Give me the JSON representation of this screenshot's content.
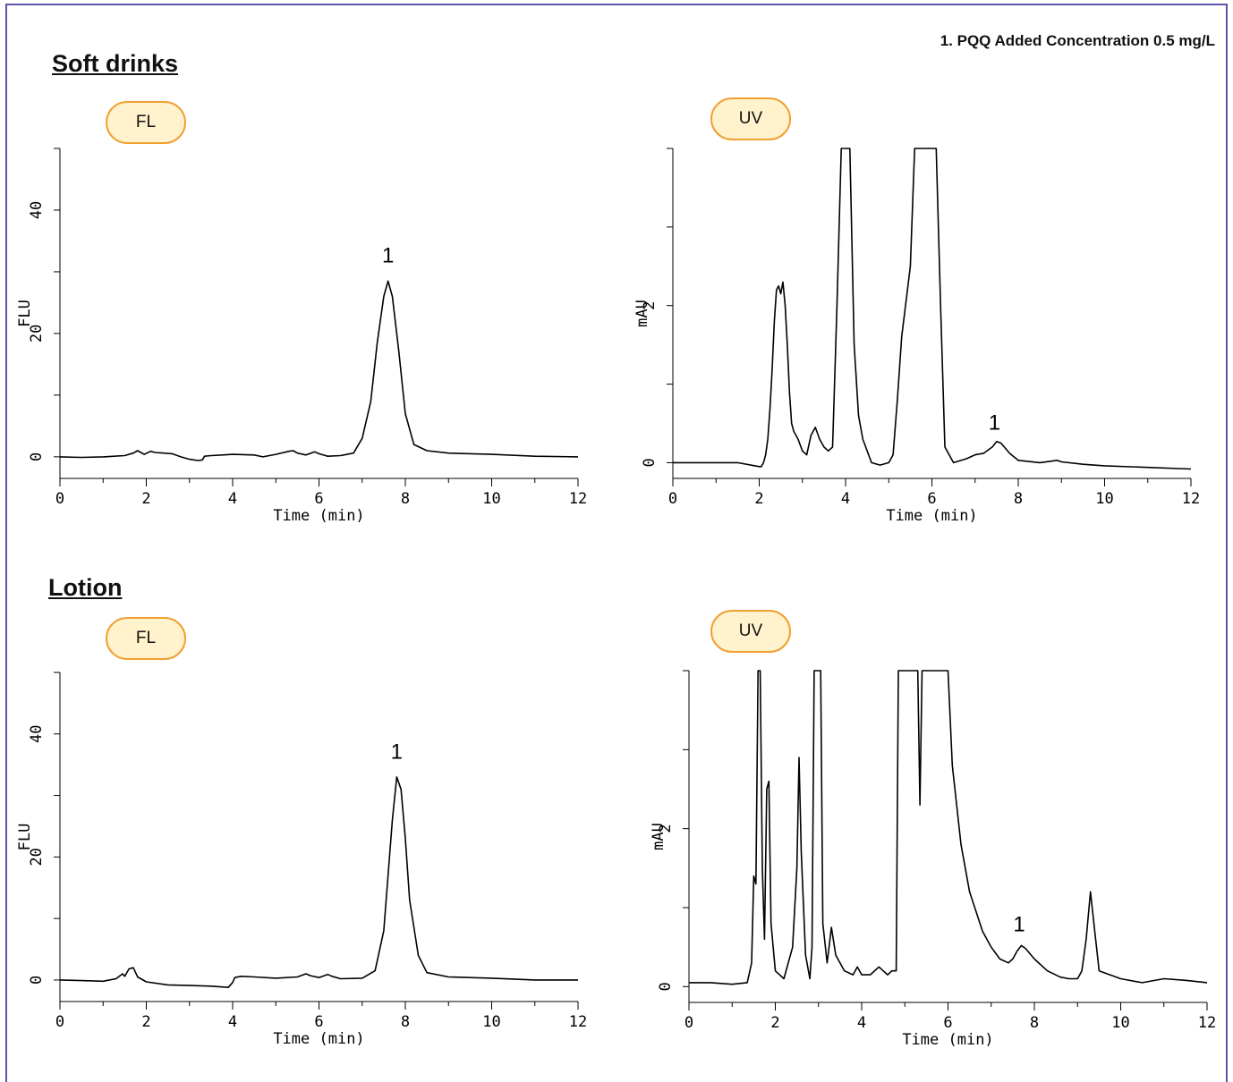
{
  "note": "1. PQQ Added Concentration 0.5 mg/L",
  "sections": [
    {
      "title": "Soft drinks"
    },
    {
      "title": "Lotion"
    }
  ],
  "badges": {
    "soft_fl": "FL",
    "soft_uv": "UV",
    "lotion_fl": "FL",
    "lotion_uv": "UV"
  },
  "colors": {
    "badge_fill": "#fff2cc",
    "badge_border": "#f0a030",
    "frame": "#5a55a8",
    "trace": "#000000"
  },
  "chart_data": [
    {
      "id": "soft-fl",
      "type": "line",
      "xlabel": "Time (min)",
      "ylabel": "FLU",
      "xlim": [
        0,
        12
      ],
      "ylim": [
        -3.5,
        50
      ],
      "xticks": [
        0,
        2,
        4,
        6,
        8,
        10,
        12
      ],
      "yticks": [
        0,
        20,
        40
      ],
      "annotations": [
        {
          "text": "1",
          "x": 7.6,
          "y": 31.5
        }
      ],
      "series": [
        {
          "x": [
            0,
            0.5,
            1.0,
            1.5,
            1.7,
            1.8,
            1.95,
            2.1,
            2.2,
            2.4,
            2.6,
            2.8,
            3.0,
            3.2,
            3.3,
            3.35,
            3.5,
            4.0,
            4.5,
            4.7,
            5.0,
            5.3,
            5.4,
            5.5,
            5.7,
            5.9,
            6.0,
            6.2,
            6.5,
            6.8,
            7.0,
            7.2,
            7.35,
            7.5,
            7.6,
            7.7,
            7.85,
            8.0,
            8.2,
            8.5,
            9.0,
            10.0,
            11.0,
            12.0
          ],
          "y": [
            0,
            -0.1,
            0,
            0.2,
            0.6,
            1.0,
            0.4,
            0.9,
            0.7,
            0.6,
            0.5,
            0.0,
            -0.4,
            -0.6,
            -0.5,
            0.1,
            0.2,
            0.4,
            0.3,
            0.0,
            0.4,
            0.9,
            1.0,
            0.6,
            0.3,
            0.8,
            0.5,
            0.1,
            0.2,
            0.6,
            3.0,
            9.0,
            18.5,
            26.0,
            28.5,
            26.0,
            17.0,
            7.0,
            2.0,
            1.0,
            0.6,
            0.4,
            0.1,
            0.0
          ]
        }
      ]
    },
    {
      "id": "soft-uv",
      "type": "line",
      "xlabel": "Time (min)",
      "ylabel": "mAU",
      "xlim": [
        0,
        12
      ],
      "ylim": [
        -0.2,
        4
      ],
      "xticks": [
        0,
        2,
        4,
        6,
        8,
        10,
        12
      ],
      "yticks": [
        0,
        2
      ],
      "annotations": [
        {
          "text": "1",
          "x": 7.45,
          "y": 0.42
        }
      ],
      "series": [
        {
          "x": [
            0,
            0.5,
            1.0,
            1.5,
            2.0,
            2.05,
            2.1,
            2.15,
            2.2,
            2.25,
            2.3,
            2.35,
            2.4,
            2.45,
            2.5,
            2.55,
            2.6,
            2.65,
            2.7,
            2.75,
            2.8,
            2.9,
            3.0,
            3.1,
            3.2,
            3.3,
            3.4,
            3.5,
            3.6,
            3.7,
            3.8,
            3.9,
            4.0,
            4.1,
            4.2,
            4.3,
            4.4,
            4.6,
            4.8,
            5.0,
            5.1,
            5.2,
            5.3,
            5.5,
            5.6,
            5.8,
            6.0,
            6.1,
            6.2,
            6.3,
            6.5,
            6.8,
            7.0,
            7.2,
            7.4,
            7.5,
            7.6,
            7.8,
            8.0,
            8.5,
            8.9,
            9.0,
            9.5,
            10.0,
            11.0,
            12.0
          ],
          "y": [
            0.0,
            0.0,
            0.0,
            0.0,
            -0.05,
            -0.05,
            0.0,
            0.1,
            0.3,
            0.7,
            1.2,
            1.8,
            2.2,
            2.25,
            2.15,
            2.3,
            2.0,
            1.5,
            0.9,
            0.5,
            0.4,
            0.3,
            0.15,
            0.1,
            0.35,
            0.45,
            0.3,
            0.2,
            0.15,
            0.2,
            2.0,
            4.0,
            4.0,
            4.0,
            1.5,
            0.6,
            0.3,
            0.0,
            -0.03,
            0.0,
            0.1,
            0.8,
            1.6,
            2.5,
            4.0,
            4.0,
            4.0,
            4.0,
            2.0,
            0.2,
            0.0,
            0.05,
            0.1,
            0.12,
            0.2,
            0.27,
            0.25,
            0.12,
            0.03,
            0.0,
            0.03,
            0.01,
            -0.02,
            -0.04,
            -0.06,
            -0.08
          ]
        }
      ]
    },
    {
      "id": "lotion-fl",
      "type": "line",
      "xlabel": "Time (min)",
      "ylabel": "FLU",
      "xlim": [
        0,
        12
      ],
      "ylim": [
        -3.5,
        50
      ],
      "xticks": [
        0,
        2,
        4,
        6,
        8,
        10,
        12
      ],
      "yticks": [
        0,
        20,
        40
      ],
      "annotations": [
        {
          "text": "1",
          "x": 7.8,
          "y": 36.0
        }
      ],
      "series": [
        {
          "x": [
            0,
            0.5,
            1.0,
            1.3,
            1.45,
            1.5,
            1.6,
            1.7,
            1.8,
            2.0,
            2.5,
            3.0,
            3.5,
            3.9,
            4.0,
            4.05,
            4.2,
            4.5,
            5.0,
            5.5,
            5.7,
            5.8,
            6.0,
            6.2,
            6.3,
            6.5,
            7.0,
            7.3,
            7.5,
            7.6,
            7.7,
            7.8,
            7.9,
            8.0,
            8.1,
            8.3,
            8.5,
            9.0,
            10.0,
            11.0,
            12.0
          ],
          "y": [
            0,
            -0.1,
            -0.2,
            0.2,
            1.0,
            0.6,
            1.8,
            2.0,
            0.5,
            -0.3,
            -0.8,
            -0.9,
            -1.0,
            -1.2,
            -0.4,
            0.4,
            0.6,
            0.5,
            0.3,
            0.5,
            1.0,
            0.7,
            0.4,
            0.9,
            0.6,
            0.2,
            0.3,
            1.5,
            8.0,
            17.0,
            26.0,
            33.0,
            31.0,
            23.0,
            13.0,
            4.0,
            1.2,
            0.5,
            0.3,
            0.0,
            0.0
          ]
        }
      ]
    },
    {
      "id": "lotion-uv",
      "type": "line",
      "xlabel": "Time (min)",
      "ylabel": "mAU",
      "xlim": [
        0,
        12
      ],
      "ylim": [
        -0.2,
        4
      ],
      "xticks": [
        0,
        2,
        4,
        6,
        8,
        10,
        12
      ],
      "yticks": [
        0,
        2
      ],
      "annotations": [
        {
          "text": "1",
          "x": 7.65,
          "y": 0.7
        }
      ],
      "series": [
        {
          "x": [
            0,
            0.5,
            1.0,
            1.35,
            1.45,
            1.5,
            1.55,
            1.6,
            1.65,
            1.7,
            1.75,
            1.8,
            1.85,
            1.9,
            2.0,
            2.2,
            2.4,
            2.5,
            2.55,
            2.6,
            2.7,
            2.8,
            2.85,
            2.9,
            3.0,
            3.05,
            3.1,
            3.2,
            3.3,
            3.4,
            3.6,
            3.8,
            3.9,
            4.0,
            4.2,
            4.4,
            4.5,
            4.6,
            4.7,
            4.8,
            4.85,
            4.9,
            5.2,
            5.3,
            5.35,
            5.4,
            5.6,
            6.0,
            6.1,
            6.3,
            6.5,
            6.8,
            7.0,
            7.2,
            7.4,
            7.5,
            7.6,
            7.7,
            7.8,
            8.0,
            8.3,
            8.6,
            8.8,
            9.0,
            9.1,
            9.2,
            9.3,
            9.4,
            9.5,
            10.0,
            10.5,
            11.0,
            11.5,
            12.0
          ],
          "y": [
            0.05,
            0.05,
            0.03,
            0.05,
            0.3,
            1.4,
            1.3,
            4.0,
            4.0,
            1.5,
            0.6,
            2.5,
            2.6,
            0.8,
            0.2,
            0.1,
            0.5,
            1.5,
            2.9,
            1.7,
            0.4,
            0.1,
            0.5,
            4.0,
            4.0,
            4.0,
            0.8,
            0.3,
            0.75,
            0.4,
            0.2,
            0.15,
            0.25,
            0.15,
            0.15,
            0.25,
            0.2,
            0.15,
            0.2,
            0.2,
            4.0,
            4.0,
            4.0,
            4.0,
            2.3,
            4.0,
            4.0,
            4.0,
            2.8,
            1.8,
            1.2,
            0.7,
            0.5,
            0.35,
            0.3,
            0.35,
            0.45,
            0.52,
            0.48,
            0.35,
            0.2,
            0.12,
            0.1,
            0.1,
            0.2,
            0.6,
            1.2,
            0.7,
            0.2,
            0.1,
            0.05,
            0.1,
            0.08,
            0.05
          ]
        }
      ]
    }
  ]
}
